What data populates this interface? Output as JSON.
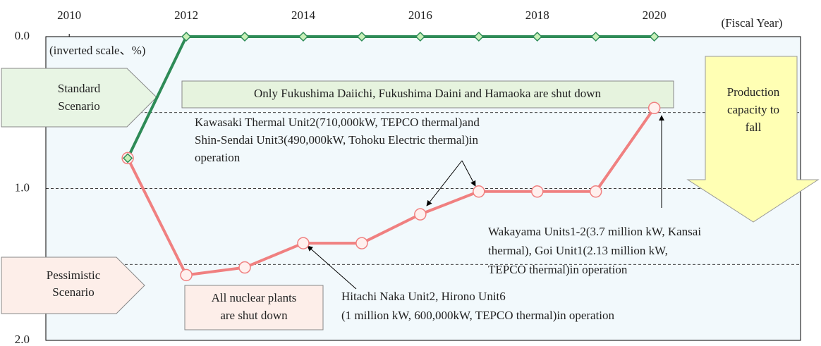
{
  "chart_data": {
    "type": "line",
    "x_label": "(Fiscal Year)",
    "y_label": "(inverted scale、%)",
    "inverted": true,
    "grid": true,
    "x": [
      2011,
      2012,
      2013,
      2014,
      2015,
      2016,
      2017,
      2018,
      2019,
      2020
    ],
    "xlim": [
      2009.6,
      2022.5
    ],
    "xticks": [
      2010,
      2012,
      2014,
      2016,
      2018,
      2020
    ],
    "ylim": [
      0,
      2
    ],
    "yticks": [
      {
        "value": 0,
        "label": "0.0"
      },
      0.5,
      {
        "value": 1,
        "label": "1.0"
      },
      1.5,
      {
        "value": 2,
        "label": "2.0"
      }
    ],
    "series": [
      {
        "name": "Standard Scenario",
        "color": "#2e8b57",
        "marker": "diamond",
        "marker_color": "#c8f0b8",
        "values": [
          0.8,
          0,
          0,
          0,
          0,
          0,
          0,
          0,
          0,
          0
        ]
      },
      {
        "name": "Pessimistic Scenario",
        "color": "#f08080",
        "marker": "circle",
        "marker_color": "#fff0ee",
        "values": [
          0.8,
          1.57,
          1.52,
          1.36,
          1.36,
          1.17,
          1.02,
          1.02,
          1.02,
          0.47
        ]
      }
    ],
    "annotations": [
      {
        "lines": [
          "Only Fukushima Daiichi, Fukushima Daini and Hamaoka are shut down"
        ]
      },
      {
        "lines": [
          "Kawasaki Thermal Unit2(710,000kW, TEPCO thermal)and",
          "Shin-Sendai Unit3(490,000kW, Tohoku Electric thermal)in",
          "operation"
        ]
      },
      {
        "lines": [
          "All nuclear plants",
          "are shut down"
        ]
      },
      {
        "lines": [
          "Hitachi Naka Unit2, Hirono Unit6",
          "(1 million kW, 600,000kW, TEPCO thermal)in operation"
        ]
      },
      {
        "lines": [
          "Wakayama Units1-2(3.7 million kW, Kansai",
          "thermal), Goi Unit1(2.13 million kW,",
          "TEPCO thermal)in operation"
        ]
      },
      {
        "lines": [
          "Production",
          "capacity to",
          "fall"
        ]
      }
    ]
  }
}
